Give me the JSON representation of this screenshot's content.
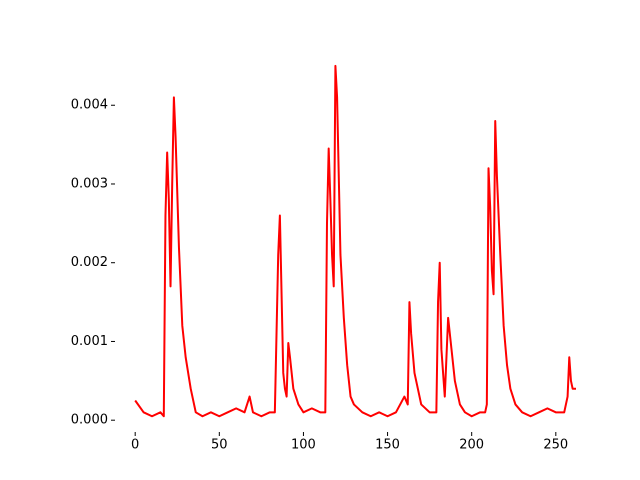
{
  "chart_data": {
    "type": "line",
    "color": "#ff0000",
    "x": [
      0,
      5,
      10,
      15,
      17,
      18,
      19,
      20,
      21,
      22,
      23,
      24,
      26,
      28,
      30,
      33,
      36,
      40,
      45,
      50,
      55,
      60,
      65,
      68,
      70,
      75,
      80,
      83,
      85,
      86,
      87,
      88,
      89,
      90,
      91,
      92,
      94,
      97,
      100,
      105,
      110,
      113,
      114,
      115,
      116,
      117,
      118,
      119,
      120,
      122,
      124,
      126,
      128,
      130,
      135,
      140,
      145,
      150,
      155,
      160,
      162,
      163,
      164,
      166,
      168,
      170,
      175,
      179,
      180,
      181,
      182,
      184,
      186,
      188,
      190,
      193,
      196,
      200,
      205,
      208,
      209,
      210,
      211,
      212,
      213,
      214,
      215,
      217,
      219,
      221,
      223,
      226,
      230,
      235,
      240,
      245,
      250,
      255,
      257,
      258,
      259,
      260,
      262
    ],
    "values": [
      0.00025,
      0.0001,
      5e-05,
      0.0001,
      5e-05,
      0.0026,
      0.0034,
      0.0028,
      0.0017,
      0.003,
      0.0041,
      0.0036,
      0.0022,
      0.0012,
      0.0008,
      0.0004,
      0.0001,
      5e-05,
      0.0001,
      5e-05,
      0.0001,
      0.00015,
      0.0001,
      0.0003,
      0.0001,
      5e-05,
      0.0001,
      0.0001,
      0.0021,
      0.0026,
      0.0016,
      0.0006,
      0.0004,
      0.0003,
      0.00098,
      0.0008,
      0.0004,
      0.0002,
      0.0001,
      0.00015,
      0.0001,
      0.0001,
      0.0025,
      0.00345,
      0.0028,
      0.0021,
      0.0017,
      0.0045,
      0.0041,
      0.0021,
      0.0013,
      0.0007,
      0.0003,
      0.0002,
      0.0001,
      5e-05,
      0.0001,
      5e-05,
      0.0001,
      0.0003,
      0.0002,
      0.0015,
      0.0011,
      0.0006,
      0.0004,
      0.0002,
      0.0001,
      0.0001,
      0.0015,
      0.002,
      0.0009,
      0.0003,
      0.0013,
      0.0009,
      0.0005,
      0.0002,
      0.0001,
      5e-05,
      0.0001,
      0.0001,
      0.0002,
      0.0032,
      0.0027,
      0.0019,
      0.0016,
      0.0038,
      0.0031,
      0.0021,
      0.0012,
      0.0007,
      0.0004,
      0.0002,
      0.0001,
      5e-05,
      0.0001,
      0.00015,
      0.0001,
      0.0001,
      0.0003,
      0.0008,
      0.0005,
      0.0004,
      0.0004
    ],
    "xlim": [
      -12,
      262
    ],
    "ylim": [
      -0.00015,
      0.0046
    ],
    "xticks": [
      0,
      50,
      100,
      150,
      200,
      250
    ],
    "yticks": [
      {
        "value": 0,
        "label": "0.000"
      },
      {
        "value": 0.001,
        "label": "0.001"
      },
      {
        "value": 0.002,
        "label": "0.002"
      },
      {
        "value": 0.003,
        "label": "0.003"
      },
      {
        "value": 0.004,
        "label": "0.004"
      }
    ]
  }
}
